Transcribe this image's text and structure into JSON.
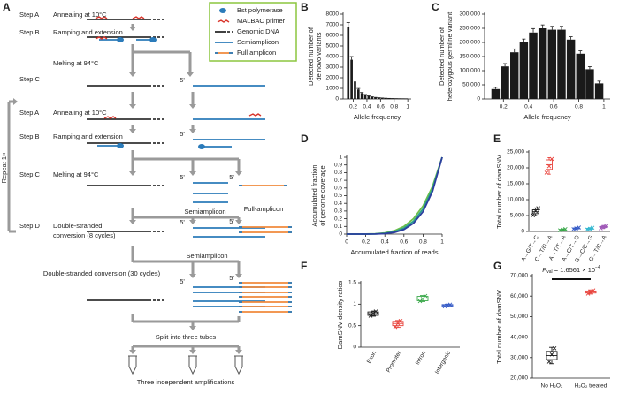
{
  "diagram": {
    "panel_label": "A",
    "legend": [
      "Bst polymerase",
      "MALBAC primer",
      "Genomic DNA",
      "Semiamplicon",
      "Full amplicon"
    ],
    "labels": [
      "Step A",
      "Annealing at 10°C",
      "Step B",
      "Ramping and extension",
      "Melting at 94°C",
      "Step C",
      "Step A",
      "Annealing at 10°C",
      "Step B",
      "Ramping and extension",
      "Step C",
      "Melting at 94°C",
      "Step D",
      "Double-stranded",
      "conversion (8 cycles)",
      "Semiamplicon",
      "Full-amplicon",
      "Semiamplicon",
      "Double-stranded conversion (30 cycles)",
      "Split into three tubes",
      "Three independent amplifications",
      "Repeat 1×"
    ],
    "five_prime": "5'"
  },
  "chart_data": [
    {
      "type": "histogram",
      "panel_label": "B",
      "ylabel": [
        "Detected number of",
        "de novo variants"
      ],
      "xlabel": "Allele frequency",
      "bins": [
        0.1,
        0.15,
        0.2,
        0.25,
        0.3,
        0.35,
        0.4,
        0.45,
        0.5,
        0.55,
        0.6,
        0.65,
        0.7,
        0.75,
        0.8,
        0.85,
        0.9,
        0.95,
        1
      ],
      "values": [
        6800,
        3700,
        1650,
        900,
        550,
        380,
        260,
        180,
        130,
        100,
        80,
        60,
        45,
        35,
        28,
        22,
        18,
        15
      ],
      "errors": [
        400,
        300,
        150,
        90,
        60,
        40,
        30,
        25,
        20,
        15,
        12,
        10,
        8,
        8,
        6,
        5,
        5,
        4
      ],
      "color": "#1a1a1a",
      "xlim": [
        0.05,
        1.05
      ],
      "xticks": [
        0.2,
        0.4,
        0.6,
        0.8,
        1
      ],
      "ylim": [
        0,
        8000
      ],
      "yticks": [
        0,
        1000,
        2000,
        3000,
        4000,
        5000,
        6000,
        7000,
        8000
      ]
    },
    {
      "type": "histogram",
      "panel_label": "C",
      "ylabel": [
        "Detected number of",
        "heterozygous germline variant"
      ],
      "xlabel": "Allele frequency",
      "bins": [
        0.1,
        0.175,
        0.25,
        0.325,
        0.4,
        0.475,
        0.55,
        0.625,
        0.7,
        0.775,
        0.85,
        0.925,
        1
      ],
      "values": [
        35000,
        115000,
        165000,
        200000,
        235000,
        250000,
        245000,
        245000,
        210000,
        160000,
        105000,
        55000
      ],
      "errors": [
        6000,
        10000,
        12000,
        12000,
        14000,
        12000,
        12000,
        12000,
        10000,
        10000,
        9000,
        8000
      ],
      "color": "#1a1a1a",
      "xlim": [
        0.05,
        1.05
      ],
      "xticks": [
        0.2,
        0.4,
        0.6,
        0.8,
        1
      ],
      "ylim": [
        0,
        300000
      ],
      "yticks": [
        0,
        {
          "value": 50000,
          "label": "50,000"
        },
        {
          "value": 100000,
          "label": "100,000"
        },
        {
          "value": 150000,
          "label": "150,000"
        },
        {
          "value": 200000,
          "label": "200,000"
        },
        {
          "value": 250000,
          "label": "250,000"
        },
        {
          "value": 300000,
          "label": "300,000"
        }
      ]
    },
    {
      "type": "line",
      "panel_label": "D",
      "ylabel": [
        "Accumulated fraction",
        "of genome coverage"
      ],
      "xlabel": "Accumulated fraction of reads",
      "x": [
        0,
        0.1,
        0.2,
        0.3,
        0.4,
        0.5,
        0.6,
        0.7,
        0.8,
        0.9,
        1
      ],
      "series": [
        {
          "color": "#6cc04a",
          "values": [
            0,
            3e-05,
            0.0007,
            0.0044,
            0.0162,
            0.0442,
            0.1004,
            0.2009,
            0.3663,
            0.6226,
            1
          ]
        },
        {
          "color": "#2a9d8f",
          "values": [
            0,
            1e-05,
            0.0003,
            0.0024,
            0.0102,
            0.0313,
            0.0778,
            0.1681,
            0.3277,
            0.5905,
            1
          ]
        },
        {
          "color": "#2c3e9e",
          "values": [
            0,
            0,
            0.0001,
            0.0013,
            0.0065,
            0.0221,
            0.0602,
            0.1409,
            0.2929,
            0.5601,
            1
          ]
        }
      ],
      "xlim": [
        0,
        1
      ],
      "xticks": [
        0,
        0.2,
        0.4,
        0.6,
        0.8,
        1
      ],
      "ylim": [
        0,
        1
      ],
      "yticks": [
        0,
        0.1,
        0.2,
        0.3,
        0.4,
        0.5,
        0.6,
        0.7,
        0.8,
        0.9,
        1
      ]
    },
    {
      "type": "box",
      "panel_label": "E",
      "ylabel": "Total number of damSNV",
      "categories": [
        "A→G/T→C",
        "C→T/G→A",
        "A→T/T→A",
        "A→C/T→G",
        "G→C/C→G",
        "G→T/C→A"
      ],
      "colors": [
        "#1a1a1a",
        "#e8413a",
        "#3aa84a",
        "#3a5fc8",
        "#35b8d0",
        "#a05ab8"
      ],
      "boxes": [
        {
          "min": 5000,
          "q1": 5600,
          "median": 6200,
          "q3": 6800,
          "max": 7400,
          "points": [
            5100,
            6400,
            7300
          ]
        },
        {
          "min": 18000,
          "q1": 19500,
          "median": 21000,
          "q3": 22500,
          "max": 23200,
          "points": [
            18500,
            20500,
            22800
          ]
        },
        {
          "min": 300,
          "q1": 450,
          "median": 550,
          "q3": 650,
          "max": 800,
          "points": [
            350,
            550,
            750
          ]
        },
        {
          "min": 600,
          "q1": 800,
          "median": 950,
          "q3": 1100,
          "max": 1300,
          "points": [
            700,
            950,
            1250
          ]
        },
        {
          "min": 500,
          "q1": 700,
          "median": 850,
          "q3": 1000,
          "max": 1200,
          "points": [
            600,
            850,
            1150
          ]
        },
        {
          "min": 900,
          "q1": 1200,
          "median": 1400,
          "q3": 1600,
          "max": 1900,
          "points": [
            1000,
            1400,
            1800
          ]
        }
      ],
      "ylim": [
        0,
        25000
      ],
      "yticks": [
        0,
        {
          "value": 5000,
          "label": "5,000"
        },
        {
          "value": 10000,
          "label": "10,000"
        },
        {
          "value": 15000,
          "label": "15,000"
        },
        {
          "value": 20000,
          "label": "20,000"
        },
        {
          "value": 25000,
          "label": "25,000"
        }
      ]
    },
    {
      "type": "box",
      "panel_label": "F",
      "ylabel": "DamSNV density ratios",
      "categories": [
        "Exon",
        "Promoter",
        "Intron",
        "Intergenic"
      ],
      "colors": [
        "#1a1a1a",
        "#e8413a",
        "#3aa84a",
        "#3a5fc8"
      ],
      "boxes": [
        {
          "min": 0.72,
          "q1": 0.74,
          "median": 0.78,
          "q3": 0.82,
          "max": 0.84,
          "points": [
            0.73,
            0.78,
            0.83
          ]
        },
        {
          "min": 0.46,
          "q1": 0.5,
          "median": 0.55,
          "q3": 0.6,
          "max": 0.62,
          "points": [
            0.47,
            0.55,
            0.61
          ]
        },
        {
          "min": 1.06,
          "q1": 1.08,
          "median": 1.12,
          "q3": 1.18,
          "max": 1.2,
          "points": [
            1.07,
            1.12,
            1.19
          ]
        },
        {
          "min": 0.94,
          "q1": 0.95,
          "median": 0.97,
          "q3": 0.99,
          "max": 1.0,
          "points": [
            0.95,
            0.97,
            0.99
          ]
        }
      ],
      "ylim": [
        0,
        1.5
      ],
      "yticks": [
        0,
        0.5,
        1,
        1.5
      ]
    },
    {
      "type": "box",
      "panel_label": "G",
      "ylabel": "Total number of damSNV",
      "annotation": [
        "P",
        "val",
        " = 1.6561 × 10",
        "−4"
      ],
      "categories": [
        "No H₂O₂",
        "H₂O₂ treated"
      ],
      "colors": [
        "#1a1a1a",
        "#e8413a"
      ],
      "boxes": [
        {
          "min": 27000,
          "q1": 29000,
          "median": 31000,
          "q3": 33000,
          "max": 35000,
          "points": [
            28000,
            31500,
            34500
          ]
        },
        {
          "min": 61000,
          "q1": 61500,
          "median": 62000,
          "q3": 62500,
          "max": 63000,
          "points": [
            61200,
            62000,
            62800
          ]
        }
      ],
      "ylim": [
        20000,
        70000
      ],
      "yticks": [
        {
          "value": 20000,
          "label": "20,000"
        },
        {
          "value": 30000,
          "label": "30,000"
        },
        {
          "value": 40000,
          "label": "40,000"
        },
        {
          "value": 50000,
          "label": "50,000"
        },
        {
          "value": 60000,
          "label": "60,000"
        },
        {
          "value": 70000,
          "label": "70,000"
        }
      ]
    }
  ]
}
